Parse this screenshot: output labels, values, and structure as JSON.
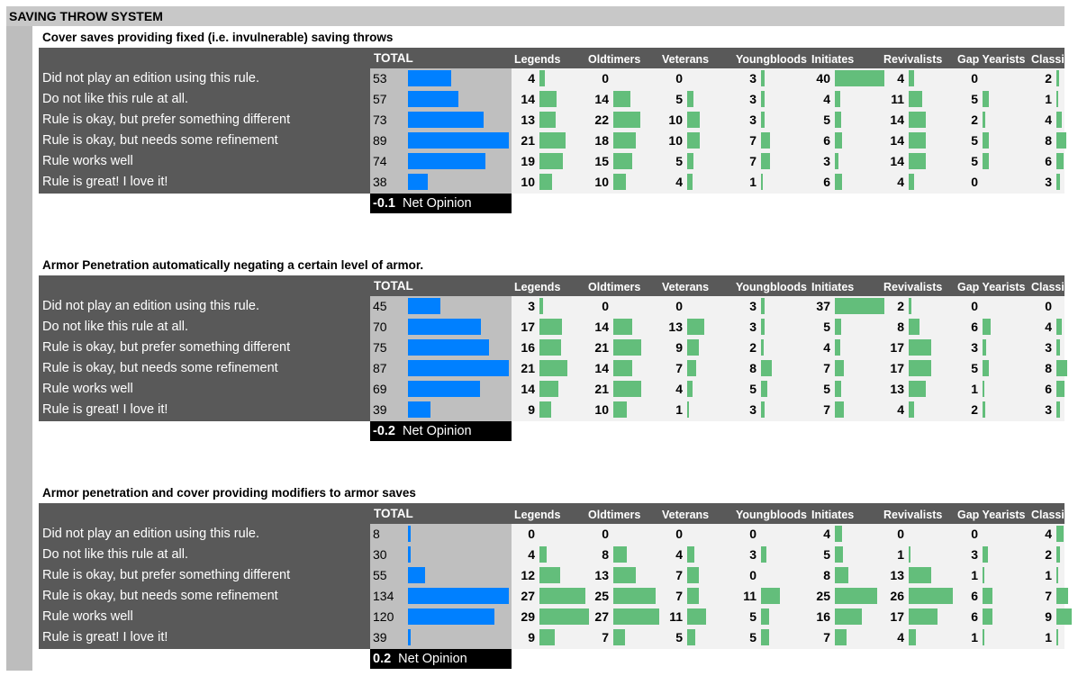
{
  "page_title": "SAVING THROW SYSTEM",
  "colors": {
    "total_bar": "#0080ff",
    "group_bar": "#63be7b",
    "header_bg": "#595959"
  },
  "header": {
    "total": "TOTAL",
    "groups": [
      "Legends",
      "Oldtimers",
      "Veterans",
      "Youngbloods",
      "Initiates",
      "Revivalists",
      "Gap Yearists",
      "Classicists"
    ]
  },
  "net_opinion_label": "Net Opinion",
  "chart_data": [
    {
      "type": "table",
      "title": "Cover saves providing fixed (i.e. invulnerable) saving throws",
      "net_opinion": "-0.1",
      "rows": [
        {
          "label": "Did not play an edition using this rule.",
          "total": 53,
          "groups": [
            4,
            0,
            0,
            3,
            40,
            4,
            0,
            2
          ]
        },
        {
          "label": "Do not like this rule at all.",
          "total": 57,
          "groups": [
            14,
            14,
            5,
            3,
            4,
            11,
            5,
            1
          ]
        },
        {
          "label": "Rule is okay, but prefer something different",
          "total": 73,
          "groups": [
            13,
            22,
            10,
            3,
            5,
            14,
            2,
            4
          ]
        },
        {
          "label": "Rule is okay, but needs some refinement",
          "total": 89,
          "groups": [
            21,
            18,
            10,
            7,
            6,
            14,
            5,
            8
          ]
        },
        {
          "label": "Rule works well",
          "total": 74,
          "groups": [
            19,
            15,
            5,
            7,
            3,
            14,
            5,
            6
          ]
        },
        {
          "label": "Rule is great! I love it!",
          "total": 38,
          "groups": [
            10,
            10,
            4,
            1,
            6,
            4,
            0,
            3
          ]
        }
      ]
    },
    {
      "type": "table",
      "title": "Armor Penetration automatically negating a certain level of armor.",
      "net_opinion": "-0.2",
      "rows": [
        {
          "label": "Did not play an edition using this rule.",
          "total": 45,
          "groups": [
            3,
            0,
            0,
            3,
            37,
            2,
            0,
            0
          ]
        },
        {
          "label": "Do not like this rule at all.",
          "total": 70,
          "groups": [
            17,
            14,
            13,
            3,
            5,
            8,
            6,
            4
          ]
        },
        {
          "label": "Rule is okay, but prefer something different",
          "total": 75,
          "groups": [
            16,
            21,
            9,
            2,
            4,
            17,
            3,
            3
          ]
        },
        {
          "label": "Rule is okay, but needs some refinement",
          "total": 87,
          "groups": [
            21,
            14,
            7,
            8,
            7,
            17,
            5,
            8
          ]
        },
        {
          "label": "Rule works well",
          "total": 69,
          "groups": [
            14,
            21,
            4,
            5,
            5,
            13,
            1,
            6
          ]
        },
        {
          "label": "Rule is great! I love it!",
          "total": 39,
          "groups": [
            9,
            10,
            1,
            3,
            7,
            4,
            2,
            3
          ]
        }
      ]
    },
    {
      "type": "table",
      "title": "Armor penetration and cover providing modifiers to armor saves",
      "net_opinion": "0.2",
      "rows": [
        {
          "label": "Did not play an edition using this rule.",
          "total": 8,
          "groups": [
            0,
            0,
            0,
            0,
            4,
            0,
            0,
            4
          ]
        },
        {
          "label": "Do not like this rule at all.",
          "total": 30,
          "groups": [
            4,
            8,
            4,
            3,
            5,
            1,
            3,
            2
          ]
        },
        {
          "label": "Rule is okay, but prefer something different",
          "total": 55,
          "groups": [
            12,
            13,
            7,
            0,
            8,
            13,
            1,
            1
          ]
        },
        {
          "label": "Rule is okay, but needs some refinement",
          "total": 134,
          "groups": [
            27,
            25,
            7,
            11,
            25,
            26,
            6,
            7
          ]
        },
        {
          "label": "Rule works well",
          "total": 120,
          "groups": [
            29,
            27,
            11,
            5,
            16,
            17,
            6,
            9
          ]
        },
        {
          "label": "Rule is great! I love it!",
          "total": 39,
          "groups": [
            9,
            7,
            5,
            5,
            7,
            4,
            1,
            1
          ]
        }
      ]
    }
  ]
}
